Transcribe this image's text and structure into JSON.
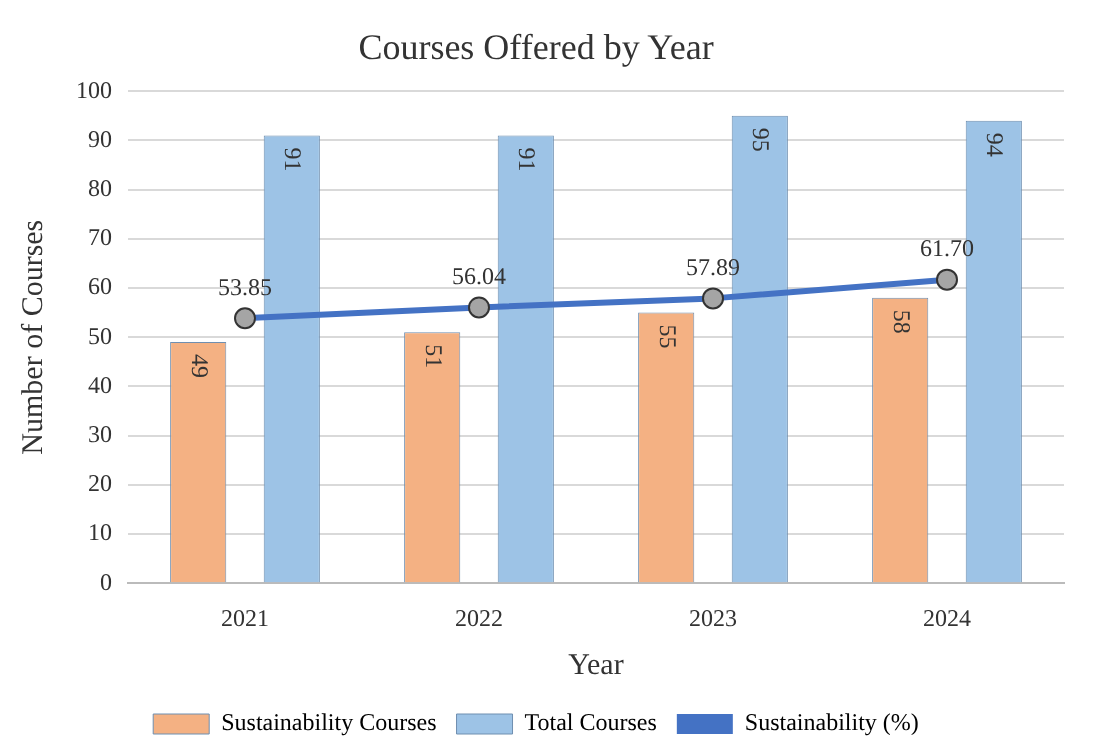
{
  "chart_data": {
    "type": "bar",
    "title": "Courses Offered by Year",
    "xlabel": "Year",
    "ylabel": "Number of Courses",
    "categories": [
      "2021",
      "2022",
      "2023",
      "2024"
    ],
    "series": [
      {
        "name": "Sustainability Courses",
        "color": "#f4b183",
        "values": [
          49,
          51,
          55,
          58
        ],
        "value_labels": [
          "49",
          "51",
          "55",
          "58"
        ]
      },
      {
        "name": "Total Courses",
        "color": "#9dc3e6",
        "values": [
          91,
          91,
          95,
          94
        ],
        "value_labels": [
          "91",
          "91",
          "95",
          "94"
        ]
      },
      {
        "name": "Sustainability (%)",
        "type": "line",
        "color": "#4472c4",
        "values": [
          53.85,
          56.04,
          57.89,
          61.7
        ],
        "value_labels": [
          "53.85",
          "56.04",
          "57.89",
          "61.70"
        ]
      }
    ],
    "ylim": [
      0,
      100
    ],
    "yticks": [
      0,
      10,
      20,
      30,
      40,
      50,
      60,
      70,
      80,
      90,
      100
    ],
    "grid": "y",
    "legend": "bottom",
    "marker": "circle"
  }
}
